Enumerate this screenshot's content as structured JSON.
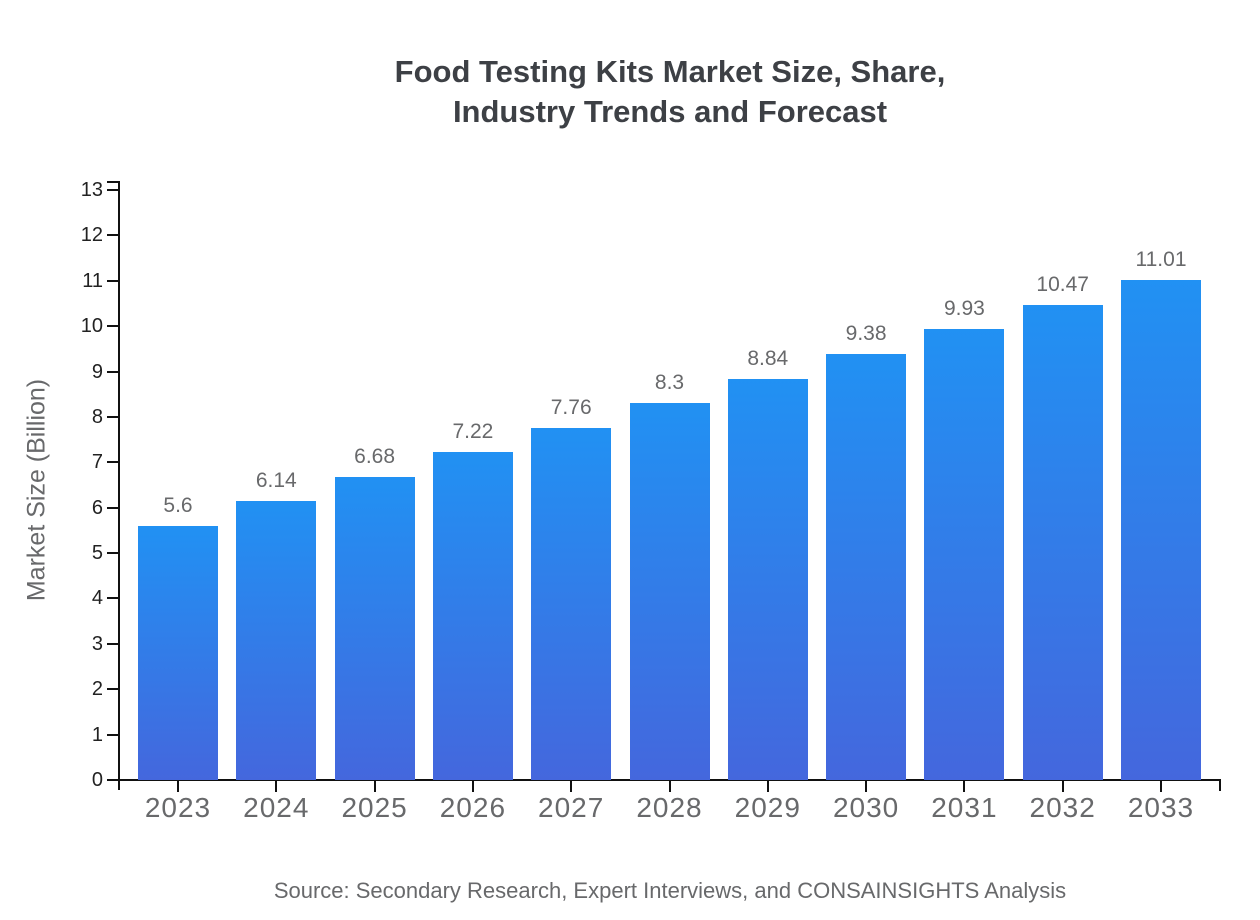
{
  "title": {
    "line1": "Food Testing Kits Market Size, Share,",
    "line2": "Industry Trends and Forecast"
  },
  "y_axis_title": "Market Size (Billion)",
  "source": "Source: Secondary Research, Expert Interviews, and CONSAINSIGHTS Analysis",
  "colors": {
    "bar_gradient_top": "#2191f3",
    "bar_gradient_bottom": "#4467dd",
    "title_text": "#3d4045",
    "axis_line": "#111111",
    "y_tick_label": "#222222",
    "muted_text": "#68696b"
  },
  "chart_data": {
    "type": "bar",
    "title": "Food Testing Kits Market Size, Share, Industry Trends and Forecast",
    "categories": [
      "2023",
      "2024",
      "2025",
      "2026",
      "2027",
      "2028",
      "2029",
      "2030",
      "2031",
      "2032",
      "2033"
    ],
    "values": [
      5.6,
      6.14,
      6.68,
      7.22,
      7.76,
      8.3,
      8.84,
      9.38,
      9.93,
      10.47,
      11.01
    ],
    "value_labels": [
      "5.6",
      "6.14",
      "6.68",
      "7.22",
      "7.76",
      "8.3",
      "8.84",
      "9.38",
      "9.93",
      "10.47",
      "11.01"
    ],
    "xlabel": "",
    "ylabel": "Market Size (Billion)",
    "ylim": [
      0,
      13
    ],
    "y_ticks": [
      0,
      1,
      2,
      3,
      4,
      5,
      6,
      7,
      8,
      9,
      10,
      11,
      12,
      13
    ],
    "grid": false,
    "legend": false,
    "subtitle": "",
    "annotation": "Source: Secondary Research, Expert Interviews, and CONSAINSIGHTS Analysis"
  }
}
